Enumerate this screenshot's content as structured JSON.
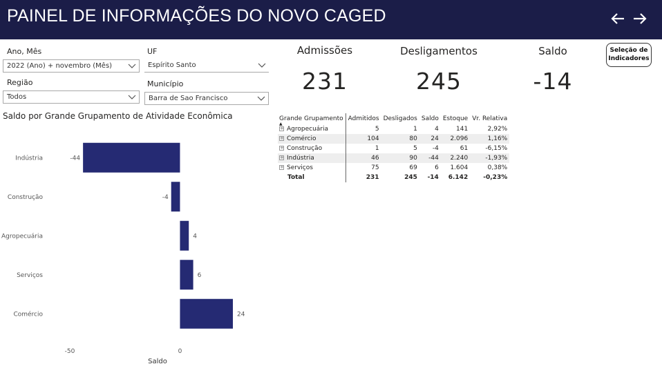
{
  "header": {
    "title": "PAINEL DE INFORMAÇÕES DO NOVO CAGED"
  },
  "filters": {
    "ano_mes": {
      "label": "Ano, Mês",
      "value": "2022 (Ano) + novembro (Mês)"
    },
    "uf": {
      "label": "UF",
      "value": "Espírito Santo"
    },
    "regiao": {
      "label": "Região",
      "value": "Todos"
    },
    "municipio": {
      "label": "Município",
      "value": "Barra de Sao Francisco"
    }
  },
  "kpis": {
    "admissoes": {
      "label": "Admissões",
      "value": "231"
    },
    "desligamentos": {
      "label": "Desligamentos",
      "value": "245"
    },
    "saldo": {
      "label": "Saldo",
      "value": "-14"
    }
  },
  "selection_button": {
    "line1": "Seleção de",
    "line2": "Indicadores"
  },
  "chart_title": "Saldo por Grande Grupamento de Atividade Econômica",
  "chart_data": {
    "type": "bar",
    "orientation": "horizontal",
    "categories": [
      "Indústria",
      "Construção",
      "Agropecuária",
      "Serviços",
      "Comércio"
    ],
    "values": [
      -44,
      -4,
      4,
      6,
      24
    ],
    "value_labels": [
      "-44",
      "-4",
      "4",
      "6",
      "24"
    ],
    "xlabel": "Saldo",
    "ylabel": "",
    "xlim": [
      -50,
      24
    ],
    "xticks": [
      -50,
      0
    ],
    "xtick_labels": [
      "-50",
      "0"
    ],
    "bar_color": "#252a73",
    "grid": false
  },
  "table": {
    "headers": [
      "Grande Grupamento",
      "Admitidos",
      "Desligados",
      "Saldo",
      "Estoque",
      "Vr. Relativa"
    ],
    "rows": [
      [
        "Agropecuária",
        "5",
        "1",
        "4",
        "141",
        "2,92%"
      ],
      [
        "Comércio",
        "104",
        "80",
        "24",
        "2.096",
        "1,16%"
      ],
      [
        "Construção",
        "1",
        "5",
        "-4",
        "61",
        "-6,15%"
      ],
      [
        "Indústria",
        "46",
        "90",
        "-44",
        "2.240",
        "-1,93%"
      ],
      [
        "Serviços",
        "75",
        "69",
        "6",
        "1.604",
        "0,38%"
      ]
    ],
    "total": [
      "Total",
      "231",
      "245",
      "-14",
      "6.142",
      "-0,23%"
    ]
  },
  "colors": {
    "header_bg": "#1b1d48",
    "bar": "#252a73"
  }
}
